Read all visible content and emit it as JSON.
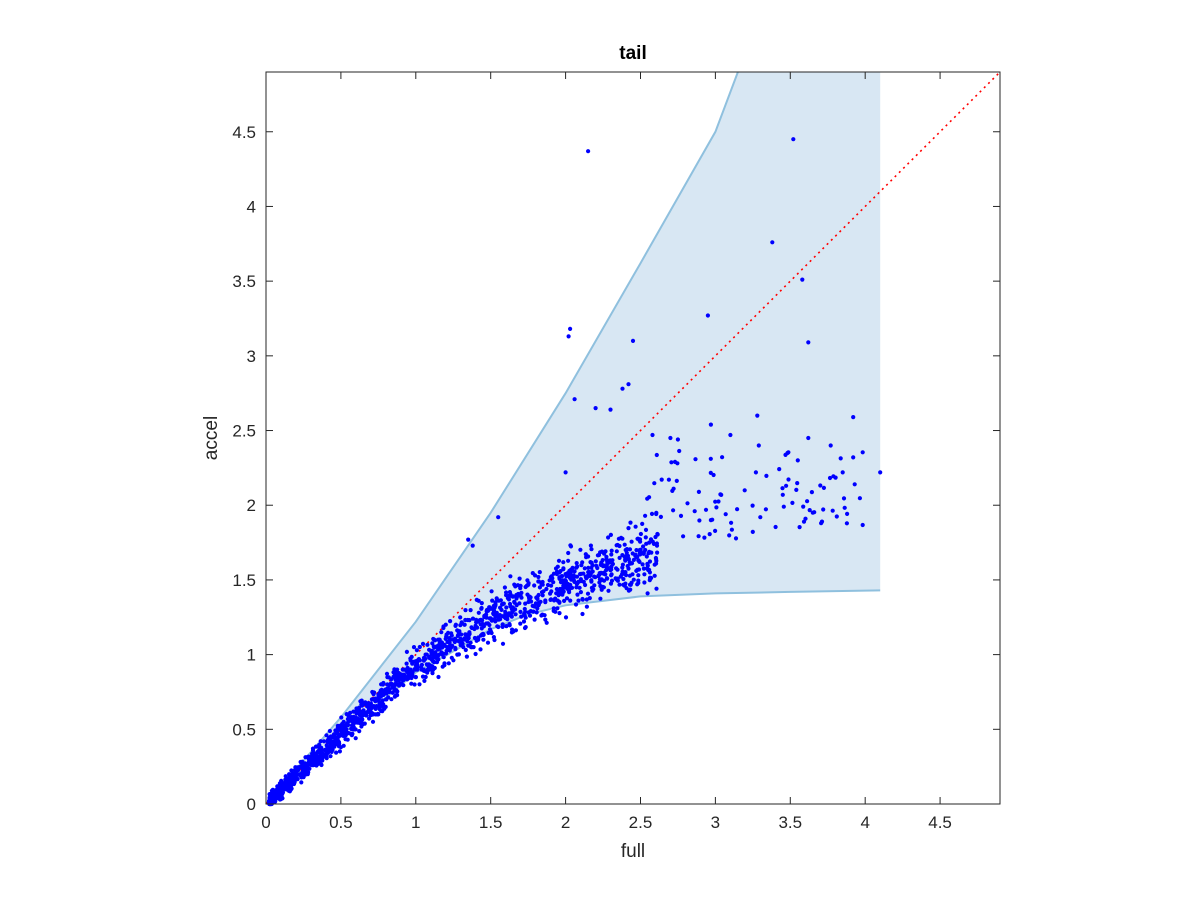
{
  "chart_data": {
    "type": "scatter",
    "title": "tail",
    "xlabel": "full",
    "ylabel": "accel",
    "xlim": [
      0,
      4.9
    ],
    "ylim": [
      0,
      4.9
    ],
    "xticks": [
      "0",
      "0.5",
      "1",
      "1.5",
      "2",
      "2.5",
      "3",
      "3.5",
      "4",
      "4.5"
    ],
    "yticks": [
      "0",
      "0.5",
      "1",
      "1.5",
      "2",
      "2.5",
      "3",
      "3.5",
      "4",
      "4.5"
    ],
    "grid": false,
    "colors": {
      "points": "#0000ff",
      "band_fill": "#d8e7f3",
      "band_edge": "#8fc0de",
      "reference_line": "#ff0000",
      "axes": "#262626"
    },
    "reference_line": {
      "style": "dotted",
      "from": [
        0,
        0
      ],
      "to": [
        4.9,
        4.9
      ]
    },
    "band": {
      "upper": [
        [
          0,
          0
        ],
        [
          0.5,
          0.58
        ],
        [
          1,
          1.22
        ],
        [
          1.5,
          1.95
        ],
        [
          2,
          2.75
        ],
        [
          2.5,
          3.62
        ],
        [
          3,
          4.5
        ],
        [
          3.15,
          4.9
        ],
        [
          4.1,
          4.9
        ]
      ],
      "lower": [
        [
          0,
          0
        ],
        [
          0.5,
          0.46
        ],
        [
          1,
          0.88
        ],
        [
          1.3,
          1.05
        ],
        [
          1.5,
          1.17
        ],
        [
          1.75,
          1.27
        ],
        [
          2,
          1.33
        ],
        [
          2.5,
          1.39
        ],
        [
          3,
          1.41
        ],
        [
          3.5,
          1.42
        ],
        [
          4.1,
          1.43
        ]
      ]
    },
    "series": [
      {
        "outliers": [
          [
            2.15,
            4.37
          ],
          [
            3.52,
            4.45
          ],
          [
            3.38,
            3.76
          ],
          [
            3.58,
            3.51
          ],
          [
            2.95,
            3.27
          ],
          [
            2.02,
            3.13
          ],
          [
            2.03,
            3.18
          ],
          [
            2.45,
            3.1
          ],
          [
            3.62,
            3.09
          ],
          [
            2.42,
            2.81
          ],
          [
            2.38,
            2.78
          ],
          [
            2.2,
            2.65
          ],
          [
            2.3,
            2.64
          ],
          [
            2.06,
            2.71
          ],
          [
            2.97,
            2.54
          ],
          [
            3.28,
            2.6
          ],
          [
            3.92,
            2.59
          ],
          [
            3.62,
            2.45
          ],
          [
            3.77,
            2.4
          ],
          [
            3.92,
            2.32
          ],
          [
            4.1,
            2.22
          ],
          [
            3.93,
            2.14
          ],
          [
            3.3,
            1.92
          ],
          [
            3.65,
            1.95
          ],
          [
            3.45,
            2.07
          ],
          [
            3.1,
            2.47
          ],
          [
            3.29,
            2.4
          ],
          [
            2.75,
            2.44
          ],
          [
            3.55,
            2.3
          ],
          [
            1.35,
            1.77
          ],
          [
            1.38,
            1.73
          ],
          [
            1.55,
            1.92
          ],
          [
            2.58,
            2.47
          ],
          [
            2.7,
            2.45
          ],
          [
            3.85,
            2.22
          ],
          [
            2.0,
            2.22
          ]
        ]
      }
    ]
  }
}
